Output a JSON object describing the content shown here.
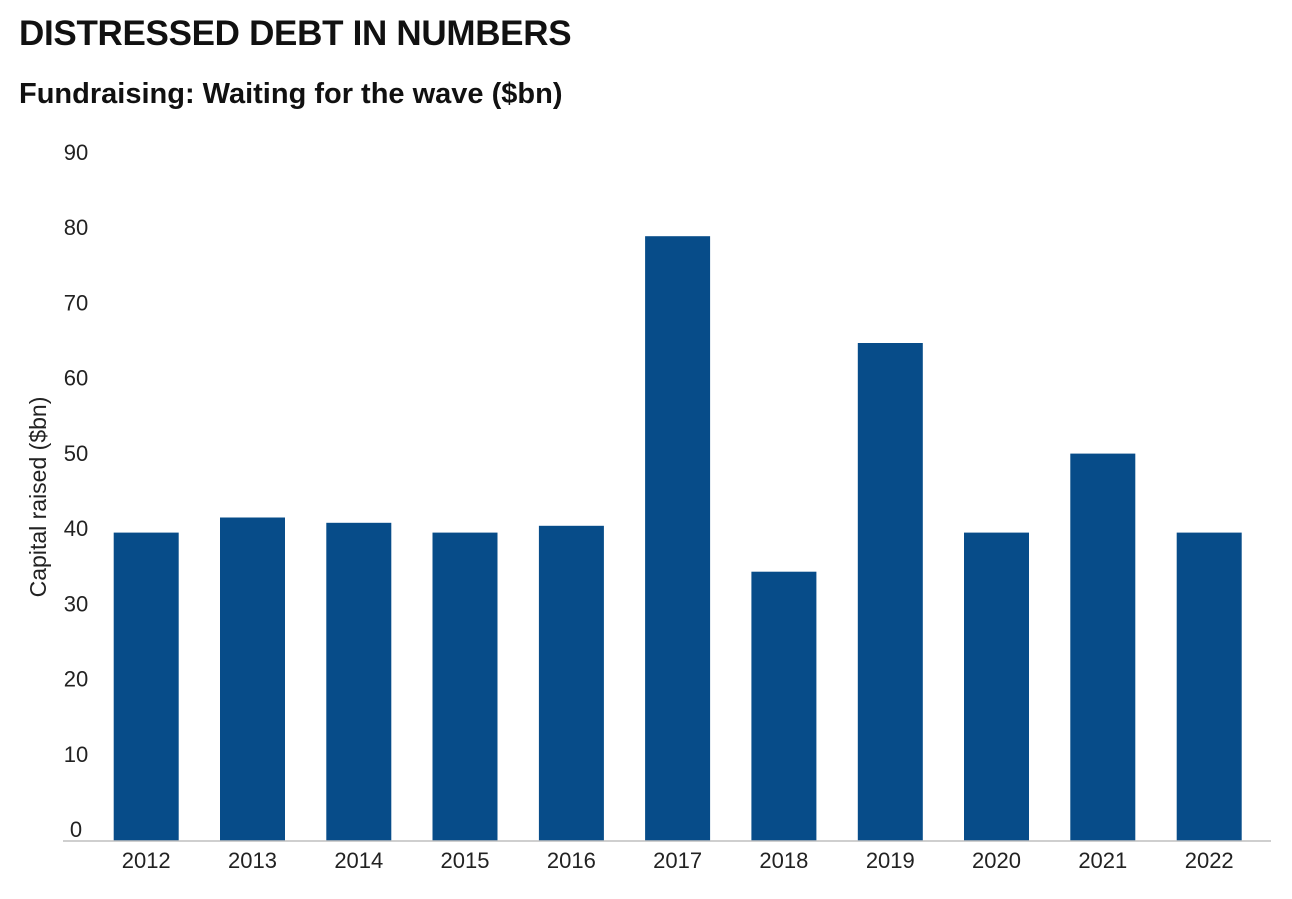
{
  "header": {
    "title": "DISTRESSED DEBT IN NUMBERS"
  },
  "chart_data": {
    "type": "bar",
    "title": "Fundraising: Waiting for the wave ($bn)",
    "xlabel": "",
    "ylabel": "Capital raised ($bn)",
    "categories": [
      "2012",
      "2013",
      "2014",
      "2015",
      "2016",
      "2017",
      "2018",
      "2019",
      "2020",
      "2021",
      "2022"
    ],
    "values": [
      41,
      43,
      42.3,
      41,
      41.9,
      80.4,
      35.8,
      66.2,
      41,
      51.5,
      41
    ],
    "ylim": [
      0,
      90
    ],
    "yticks": [
      "0",
      "10",
      "20",
      "30",
      "40",
      "50",
      "60",
      "70",
      "80",
      "90"
    ],
    "grid": false,
    "legend": "none",
    "bar_color": "#074c89",
    "axis_color": "#bfbfbf"
  }
}
